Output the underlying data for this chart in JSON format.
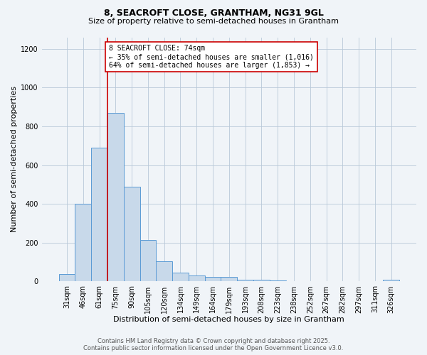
{
  "title_line1": "8, SEACROFT CLOSE, GRANTHAM, NG31 9GL",
  "title_line2": "Size of property relative to semi-detached houses in Grantham",
  "xlabel": "Distribution of semi-detached houses by size in Grantham",
  "ylabel": "Number of semi-detached properties",
  "categories": [
    "31sqm",
    "46sqm",
    "61sqm",
    "75sqm",
    "90sqm",
    "105sqm",
    "120sqm",
    "134sqm",
    "149sqm",
    "164sqm",
    "179sqm",
    "193sqm",
    "208sqm",
    "223sqm",
    "238sqm",
    "252sqm",
    "267sqm",
    "282sqm",
    "297sqm",
    "311sqm",
    "326sqm"
  ],
  "values": [
    40,
    400,
    690,
    870,
    490,
    215,
    105,
    45,
    30,
    25,
    25,
    10,
    10,
    5,
    3,
    3,
    2,
    1,
    1,
    1,
    10
  ],
  "bar_color": "#c8d9ea",
  "bar_edge_color": "#5b9bd5",
  "property_line_x": 2.5,
  "property_line_color": "#cc0000",
  "annotation_line1": "8 SEACROFT CLOSE: 74sqm",
  "annotation_line2": "← 35% of semi-detached houses are smaller (1,016)",
  "annotation_line3": "64% of semi-detached houses are larger (1,853) →",
  "annotation_box_color": "#ffffff",
  "annotation_box_edge_color": "#cc0000",
  "ylim": [
    0,
    1260
  ],
  "yticks": [
    0,
    200,
    400,
    600,
    800,
    1000,
    1200
  ],
  "background_color": "#f0f4f8",
  "grid_color": "#b8c8d8",
  "footer_line1": "Contains HM Land Registry data © Crown copyright and database right 2025.",
  "footer_line2": "Contains public sector information licensed under the Open Government Licence v3.0.",
  "title_fontsize": 9,
  "subtitle_fontsize": 8,
  "axis_label_fontsize": 8,
  "tick_fontsize": 7,
  "annotation_fontsize": 7,
  "footer_fontsize": 6
}
